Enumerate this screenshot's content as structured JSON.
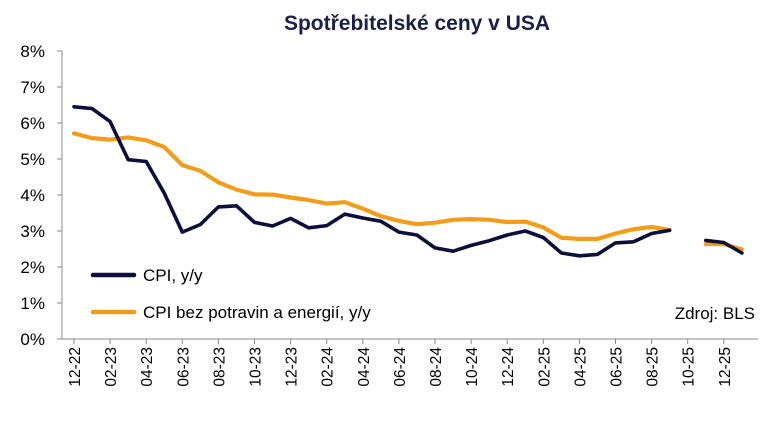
{
  "chart_data": {
    "type": "line",
    "title": "Spotřebitelské ceny v USA",
    "source": "Zdroj: BLS",
    "ylim": [
      0,
      8
    ],
    "yticks": [
      "0%",
      "1%",
      "2%",
      "3%",
      "4%",
      "5%",
      "6%",
      "7%",
      "8%"
    ],
    "x": [
      "12-22",
      "01-23",
      "02-23",
      "03-23",
      "04-23",
      "05-23",
      "06-23",
      "07-23",
      "08-23",
      "09-23",
      "10-23",
      "11-23",
      "12-23",
      "01-24",
      "02-24",
      "03-24",
      "04-24",
      "05-24",
      "06-24",
      "07-24",
      "08-24",
      "09-24",
      "10-24",
      "11-24",
      "12-24",
      "01-25",
      "02-25",
      "03-25",
      "04-25",
      "05-25",
      "06-25",
      "07-25",
      "08-25",
      "09-25",
      "10-25",
      "11-25",
      "12-25",
      "01-26"
    ],
    "xtick_labels": [
      "12-22",
      "02-23",
      "04-23",
      "06-23",
      "08-23",
      "10-23",
      "12-23",
      "02-24",
      "04-24",
      "06-24",
      "08-24",
      "10-24",
      "12-24",
      "02-25",
      "04-25",
      "06-25",
      "08-25",
      "10-25",
      "12-25"
    ],
    "series": [
      {
        "name": "CPI, y/y",
        "color": "#0b0f3d",
        "values": [
          6.45,
          6.4,
          6.04,
          4.98,
          4.93,
          4.05,
          2.97,
          3.18,
          3.67,
          3.7,
          3.24,
          3.14,
          3.35,
          3.09,
          3.15,
          3.47,
          3.36,
          3.27,
          2.97,
          2.89,
          2.53,
          2.44,
          2.6,
          2.73,
          2.89,
          3.0,
          2.82,
          2.39,
          2.31,
          2.35,
          2.67,
          2.7,
          2.93,
          3.02,
          null,
          2.74,
          2.68,
          2.39
        ]
      },
      {
        "name": "CPI bez potravin a energií, y/y",
        "color": "#f39c1a",
        "values": [
          5.71,
          5.58,
          5.54,
          5.6,
          5.52,
          5.33,
          4.83,
          4.67,
          4.35,
          4.15,
          4.02,
          4.01,
          3.93,
          3.86,
          3.76,
          3.8,
          3.62,
          3.41,
          3.28,
          3.19,
          3.23,
          3.31,
          3.33,
          3.31,
          3.25,
          3.26,
          3.1,
          2.81,
          2.78,
          2.78,
          2.93,
          3.05,
          3.11,
          3.03,
          null,
          2.64,
          2.64,
          2.49
        ]
      }
    ]
  }
}
